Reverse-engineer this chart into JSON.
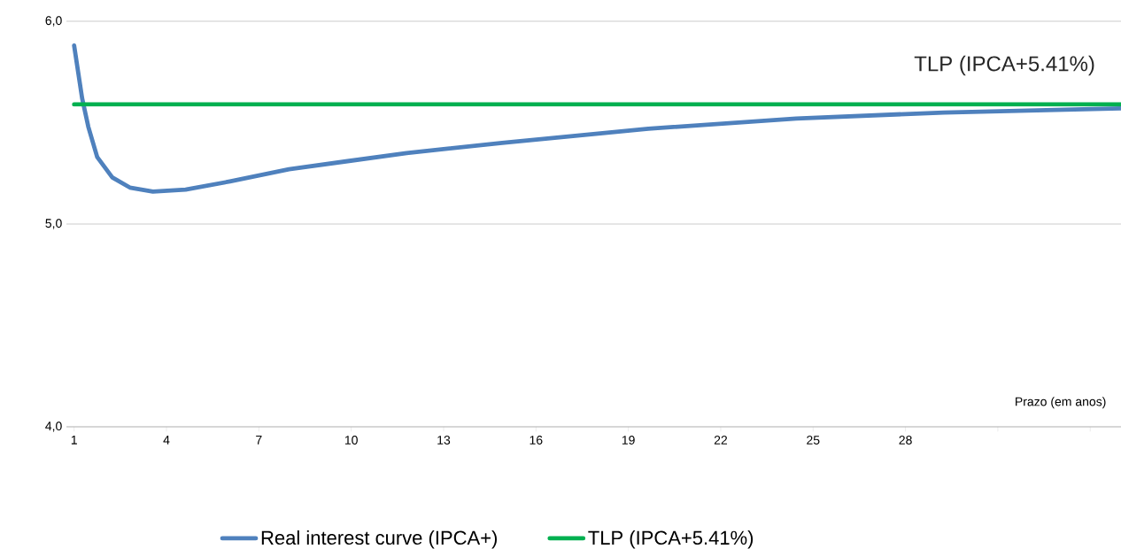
{
  "chart_data": {
    "type": "line",
    "xlabel": "Prazo (em anos)",
    "annotations": [
      {
        "text": "TLP (IPCA+5.41%)",
        "x": 34.3,
        "y": 5.59
      }
    ],
    "xlim": [
      0.75,
      35
    ],
    "xticks": [
      1,
      4,
      7,
      10,
      13,
      16,
      19,
      22,
      25,
      28,
      {
        "value": 31,
        "label": null
      },
      {
        "value": 34,
        "label": null
      }
    ],
    "ylim": [
      4,
      6
    ],
    "yticks": [
      {
        "value": 4,
        "label": "4,0"
      },
      {
        "value": 5,
        "label": "5,0"
      },
      {
        "value": 6,
        "label": "6,0"
      }
    ],
    "grid": "y",
    "legend": "bottom",
    "marker": "none",
    "series": [
      {
        "name": "Real interest curve (IPCA+)",
        "color": "#4f81bd",
        "x": [
          1,
          1.26,
          1.46,
          1.75,
          2.24,
          2.81,
          3.56,
          4.62,
          6.06,
          7.98,
          9.88,
          11.8,
          14.9,
          19.65,
          24.45,
          29.25,
          35
        ],
        "values": [
          5.88,
          5.62,
          5.48,
          5.33,
          5.23,
          5.18,
          5.16,
          5.17,
          5.21,
          5.27,
          5.31,
          5.35,
          5.4,
          5.47,
          5.52,
          5.55,
          5.57
        ]
      },
      {
        "name": "TLP (IPCA+5.41%)",
        "color": "#00b050",
        "x": [
          1,
          35
        ],
        "values": [
          5.59,
          5.59
        ]
      }
    ]
  }
}
